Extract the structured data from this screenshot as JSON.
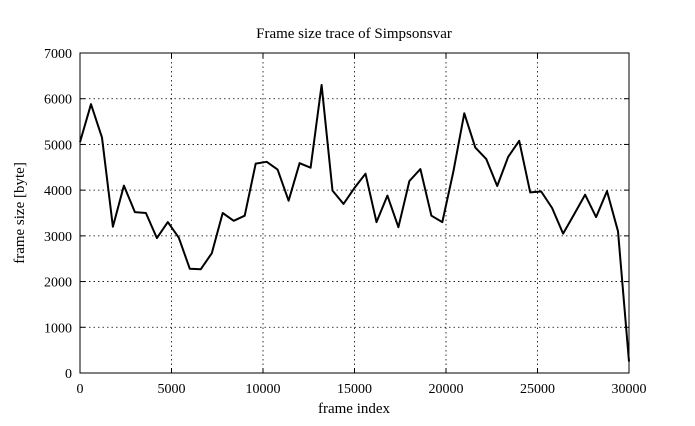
{
  "chart_data": {
    "type": "line",
    "title": "Frame size trace of Simpsonsvar",
    "xlabel": "frame index",
    "ylabel": "frame size [byte]",
    "xlim": [
      0,
      30000
    ],
    "ylim": [
      0,
      7000
    ],
    "xticks": [
      0,
      5000,
      10000,
      15000,
      20000,
      25000,
      30000
    ],
    "yticks": [
      0,
      1000,
      2000,
      3000,
      4000,
      5000,
      6000,
      7000
    ],
    "grid": true,
    "series": [
      {
        "x": [
          0,
          600,
          1200,
          1800,
          2400,
          3000,
          3600,
          4200,
          4800,
          5400,
          6000,
          6600,
          7200,
          7800,
          8400,
          9000,
          9600,
          10200,
          10800,
          11400,
          12000,
          12600,
          13200,
          13800,
          14400,
          15000,
          15600,
          16200,
          16800,
          17400,
          18000,
          18600,
          19200,
          19800,
          20400,
          21000,
          21600,
          22200,
          22800,
          23400,
          24000,
          24600,
          25200,
          25800,
          26400,
          27000,
          27600,
          28200,
          28800,
          29400,
          30000
        ],
        "values": [
          5050,
          5880,
          5150,
          3200,
          4100,
          3520,
          3500,
          2950,
          3300,
          2960,
          2280,
          2270,
          2620,
          3500,
          3330,
          3440,
          4580,
          4620,
          4450,
          3770,
          4590,
          4490,
          6300,
          3990,
          3700,
          4050,
          4360,
          3300,
          3880,
          3190,
          4200,
          4460,
          3440,
          3300,
          4400,
          5680,
          4930,
          4680,
          4090,
          4730,
          5080,
          3950,
          3970,
          3610,
          3050,
          3470,
          3900,
          3410,
          3980,
          3100,
          250
        ]
      }
    ]
  }
}
